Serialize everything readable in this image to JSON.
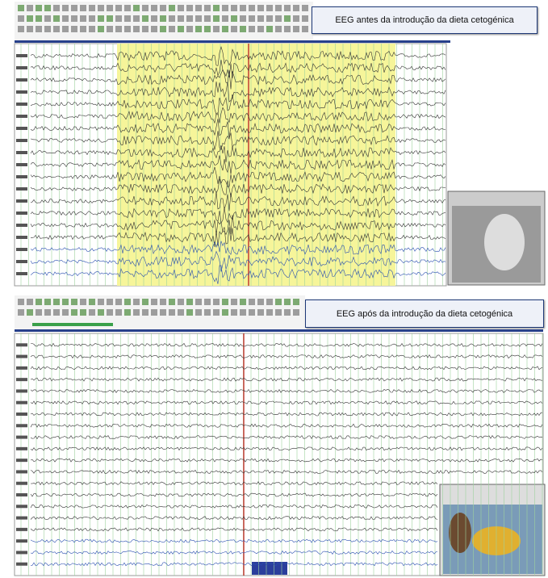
{
  "panels": [
    {
      "caption": "EEG antes da introdução da dieta cetogénica"
    },
    {
      "caption": "EEG após da introdução da dieta cetogénica"
    }
  ]
}
